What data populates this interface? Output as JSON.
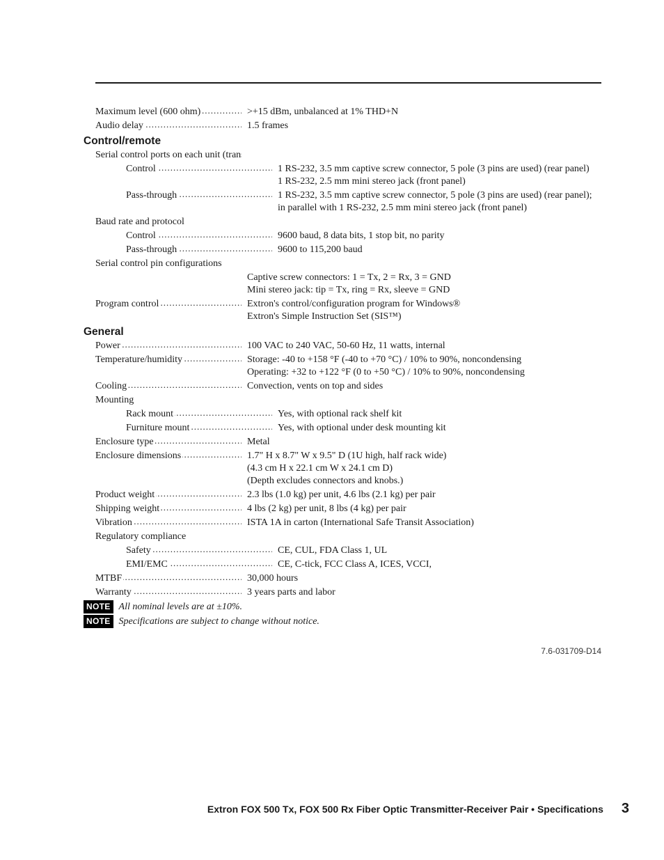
{
  "top_specs": [
    {
      "label": "Maximum level (600 ohm)",
      "value": ">+15 dBm, unbalanced at 1% THD+N",
      "indent": 0,
      "dotted": true
    },
    {
      "label": "Audio delay",
      "value": "1.5 frames",
      "indent": 0,
      "dotted": true
    }
  ],
  "sections": [
    {
      "heading": "Control/remote",
      "rows": [
        {
          "label": "Serial control ports on each unit (transmitter and receiver)",
          "value": "",
          "indent": 0,
          "dotted": false
        },
        {
          "label": "Control",
          "value": "1 RS-232, 3.5 mm captive screw connector, 5 pole (3 pins are used) (rear panel)\n1 RS-232, 2.5 mm mini stereo jack (front panel)",
          "indent": 1,
          "dotted": true
        },
        {
          "label": "Pass-through",
          "value": "1 RS-232, 3.5 mm captive screw connector, 5 pole (3 pins are used) (rear panel); in parallel with 1 RS-232, 2.5 mm mini stereo jack (front panel)",
          "indent": 1,
          "dotted": true
        },
        {
          "label": "Baud rate and protocol",
          "value": "",
          "indent": 0,
          "dotted": false
        },
        {
          "label": "Control",
          "value": "9600 baud, 8 data bits, 1 stop bit, no parity",
          "indent": 1,
          "dotted": true
        },
        {
          "label": "Pass-through",
          "value": "9600 to 115,200 baud",
          "indent": 1,
          "dotted": true
        },
        {
          "label": "Serial control pin configurations",
          "value": "",
          "indent": 0,
          "dotted": false
        },
        {
          "label": "",
          "value": "Captive screw connectors: 1 = Tx, 2 = Rx, 3 = GND\nMini stereo jack: tip = Tx, ring = Rx, sleeve = GND",
          "indent": 0,
          "dotted": false
        },
        {
          "label": "Program control",
          "value": "Extron's control/configuration program for Windows®\nExtron's Simple Instruction Set (SIS™)",
          "indent": 0,
          "dotted": true
        }
      ]
    },
    {
      "heading": "General",
      "rows": [
        {
          "label": "Power",
          "value": "100 VAC to 240 VAC, 50-60 Hz, 11 watts, internal",
          "indent": 0,
          "dotted": true
        },
        {
          "label": "Temperature/humidity",
          "value": "Storage: -40 to +158 °F (-40 to +70 °C) / 10% to 90%, noncondensing\nOperating: +32 to +122 °F (0 to +50 °C) / 10% to 90%, noncondensing",
          "indent": 0,
          "dotted": true
        },
        {
          "label": "Cooling",
          "value": "Convection, vents on top and sides",
          "indent": 0,
          "dotted": true
        },
        {
          "label": "Mounting",
          "value": "",
          "indent": 0,
          "dotted": false
        },
        {
          "label": "Rack mount",
          "value": "Yes, with optional rack shelf kit",
          "indent": 1,
          "dotted": true
        },
        {
          "label": "Furniture mount",
          "value": "Yes, with optional under desk mounting kit",
          "indent": 1,
          "dotted": true
        },
        {
          "label": "Enclosure type",
          "value": "Metal",
          "indent": 0,
          "dotted": true
        },
        {
          "label": "Enclosure dimensions",
          "value": "1.7\" H x 8.7\" W x 9.5\" D (1U high, half rack wide)\n(4.3 cm H x 22.1 cm W x 24.1 cm D)\n(Depth excludes connectors and knobs.)",
          "indent": 0,
          "dotted": true
        },
        {
          "label": "Product weight",
          "value": "2.3 lbs (1.0 kg) per unit, 4.6 lbs (2.1 kg) per pair",
          "indent": 0,
          "dotted": true
        },
        {
          "label": "Shipping weight",
          "value": "4 lbs (2 kg) per unit, 8 lbs (4 kg) per pair",
          "indent": 0,
          "dotted": true
        },
        {
          "label": "Vibration",
          "value": "ISTA 1A in carton (International Safe Transit Association)",
          "indent": 0,
          "dotted": true
        },
        {
          "label": "Regulatory compliance",
          "value": "",
          "indent": 0,
          "dotted": false
        },
        {
          "label": "Safety",
          "value": "CE, CUL, FDA Class 1, UL",
          "indent": 1,
          "dotted": true
        },
        {
          "label": "EMI/EMC",
          "value": "CE, C-tick, FCC Class A, ICES, VCCI,",
          "indent": 1,
          "dotted": true
        },
        {
          "label": "MTBF",
          "value": "30,000 hours",
          "indent": 0,
          "dotted": true
        },
        {
          "label": "Warranty",
          "value": "3 years parts and labor",
          "indent": 0,
          "dotted": true
        }
      ]
    }
  ],
  "notes": [
    {
      "badge": "NOTE",
      "text": "All nominal levels are at ±10%."
    },
    {
      "badge": "NOTE",
      "text": "Specifications are subject to change without notice."
    }
  ],
  "doc_number": "7.6-031709-D14",
  "footer": {
    "title": "Extron FOX 500 Tx, FOX 500 Rx Fiber Optic Transmitter-Receiver Pair • Specifications",
    "page": "3"
  }
}
